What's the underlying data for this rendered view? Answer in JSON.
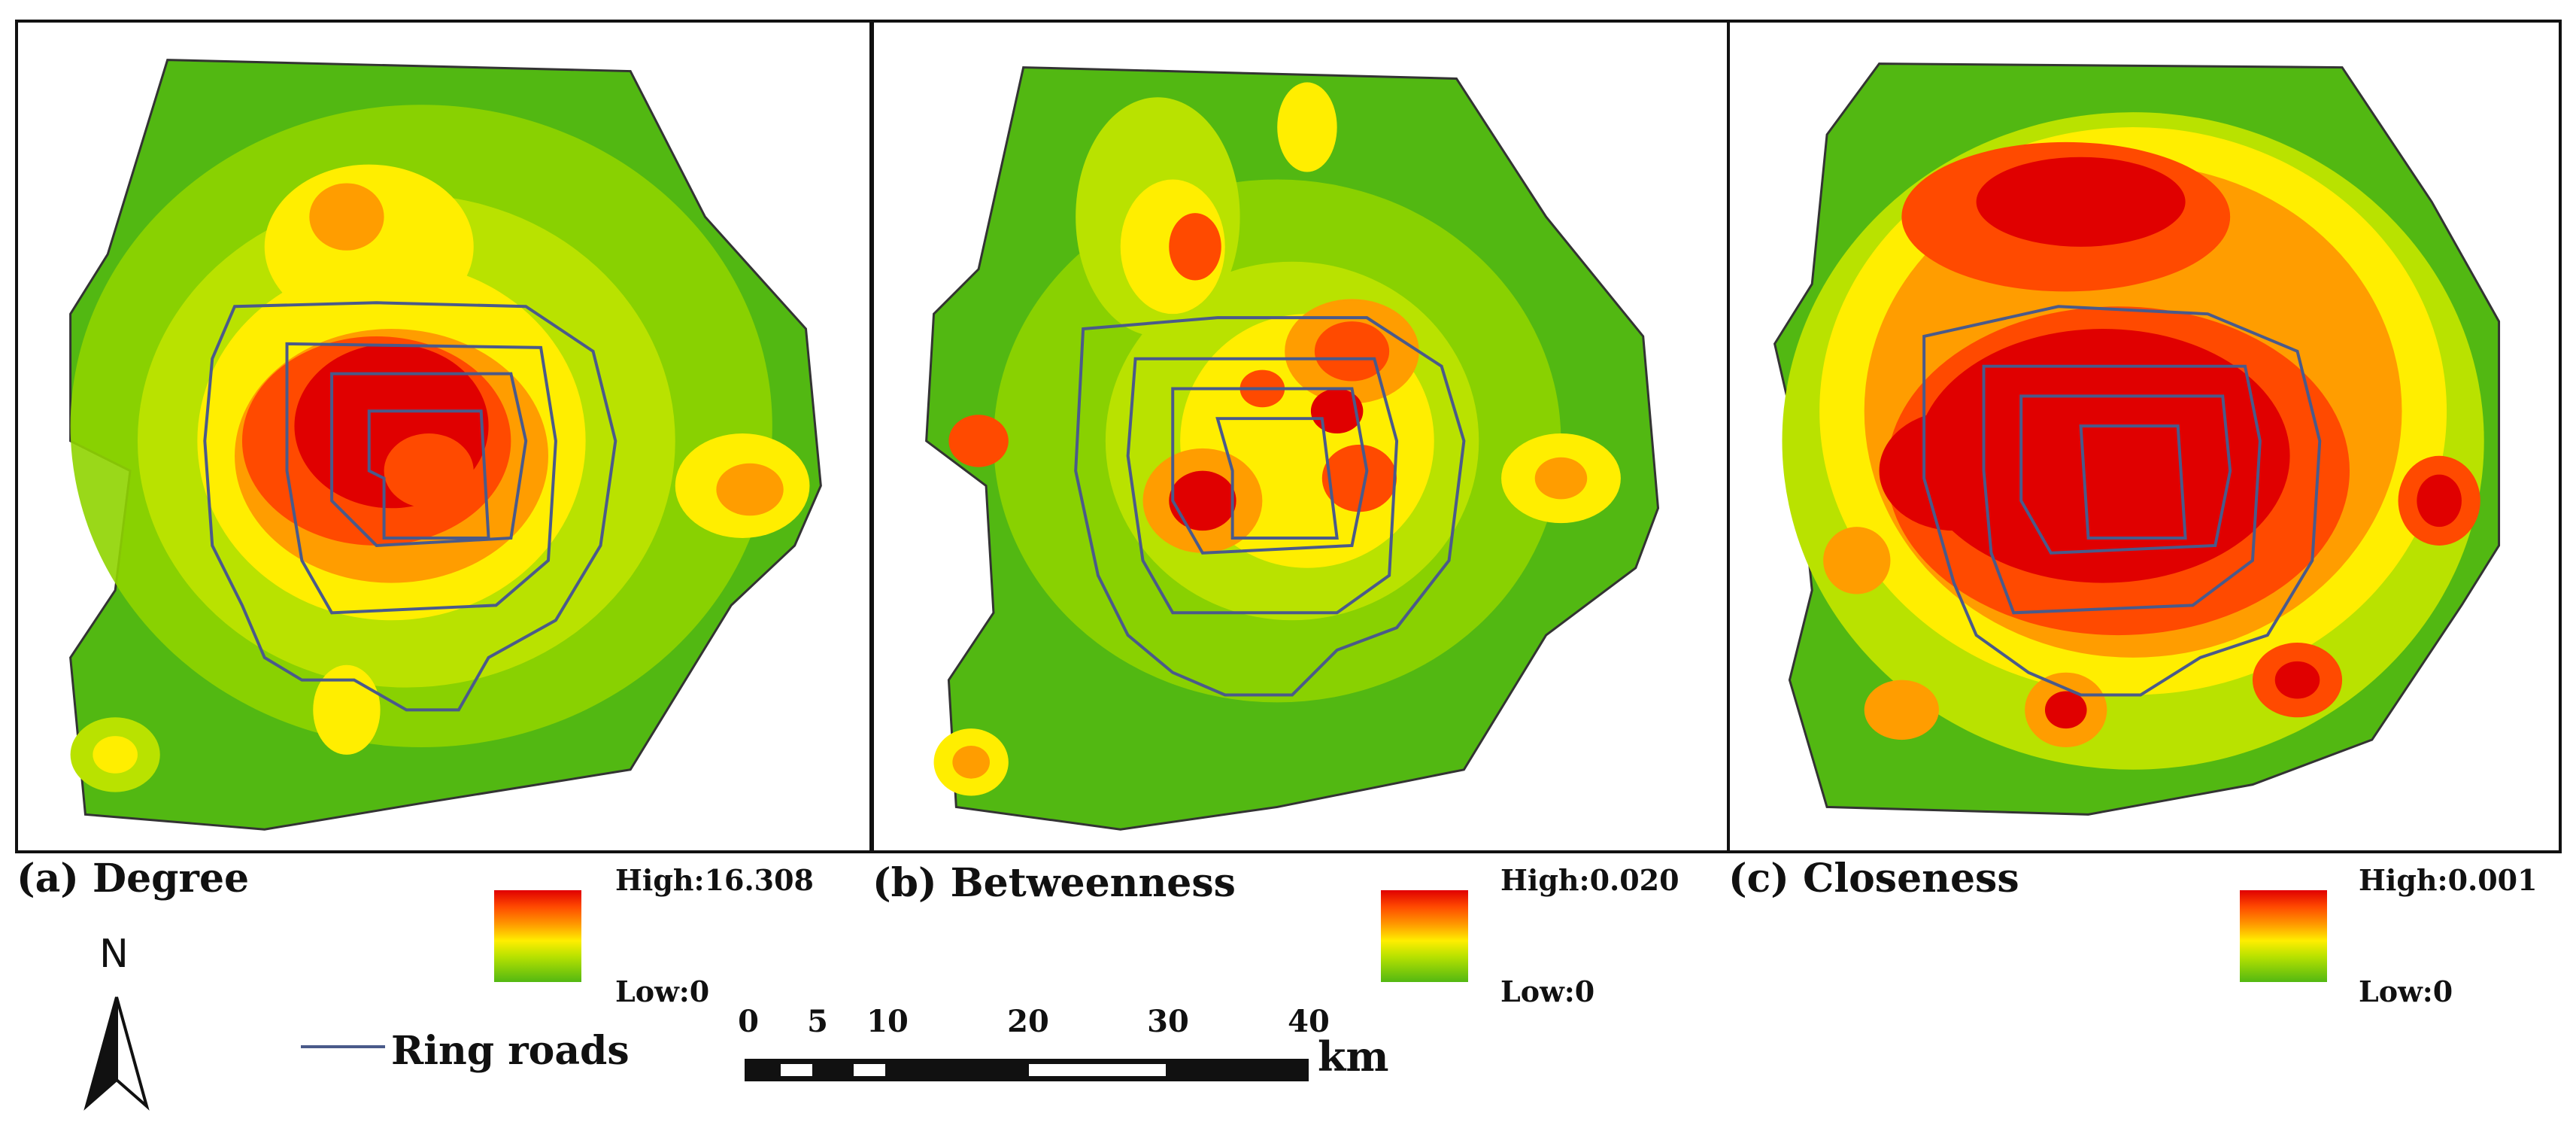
{
  "panels": [
    {
      "label": "(a) Degree",
      "legend_high": "High:16.308",
      "legend_low": "Low:0"
    },
    {
      "label": "(b) Betweenness",
      "legend_high": "High:0.020",
      "legend_low": "Low:0"
    },
    {
      "label": "(c) Closeness",
      "legend_high": "High:0.001",
      "legend_low": "Low:0"
    }
  ],
  "north_arrow": {
    "letter": "N"
  },
  "ring_roads_legend": {
    "label": "Ring roads",
    "color": "#4a5a8a"
  },
  "scale_bar": {
    "ticks": [
      "0",
      "5",
      "10",
      "20",
      "30",
      "40"
    ],
    "unit": "km"
  },
  "colors": {
    "high": "#e00000",
    "high_mid": "#ff7a00",
    "mid": "#ffee00",
    "low_mid": "#b9e200",
    "low": "#52b812",
    "ring_road": "#4a5a8a"
  }
}
